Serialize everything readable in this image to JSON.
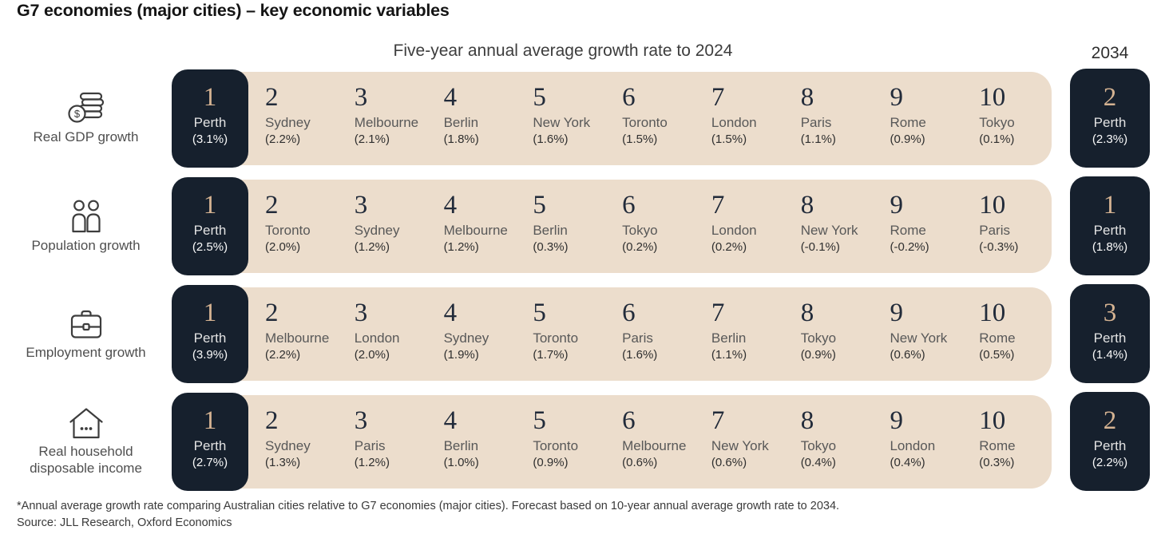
{
  "title": "G7 economies (major cities) – key economic variables",
  "header": {
    "period_label": "Five-year annual average growth rate to 2024",
    "forecast_year": "2034"
  },
  "colors": {
    "dark_navy": "#16202d",
    "beige_band": "#ecddcc",
    "rank_accent_tan": "#d5b392"
  },
  "rows": [
    {
      "label": "Real GDP growth",
      "icon": "coins-icon",
      "ranks": [
        {
          "rank": "1",
          "city": "Perth",
          "value": "(3.1%)"
        },
        {
          "rank": "2",
          "city": "Sydney",
          "value": "(2.2%)"
        },
        {
          "rank": "3",
          "city": "Melbourne",
          "value": "(2.1%)"
        },
        {
          "rank": "4",
          "city": "Berlin",
          "value": "(1.8%)"
        },
        {
          "rank": "5",
          "city": "New York",
          "value": "(1.6%)"
        },
        {
          "rank": "6",
          "city": "Toronto",
          "value": "(1.5%)"
        },
        {
          "rank": "7",
          "city": "London",
          "value": "(1.5%)"
        },
        {
          "rank": "8",
          "city": "Paris",
          "value": "(1.1%)"
        },
        {
          "rank": "9",
          "city": "Rome",
          "value": "(0.9%)"
        },
        {
          "rank": "10",
          "city": "Tokyo",
          "value": "(0.1%)"
        }
      ],
      "forecast": {
        "rank": "2",
        "city": "Perth",
        "value": "(2.3%)"
      }
    },
    {
      "label": "Population growth",
      "icon": "people-icon",
      "ranks": [
        {
          "rank": "1",
          "city": "Perth",
          "value": "(2.5%)"
        },
        {
          "rank": "2",
          "city": "Toronto",
          "value": "(2.0%)"
        },
        {
          "rank": "3",
          "city": "Sydney",
          "value": "(1.2%)"
        },
        {
          "rank": "4",
          "city": "Melbourne",
          "value": "(1.2%)"
        },
        {
          "rank": "5",
          "city": "Berlin",
          "value": "(0.3%)"
        },
        {
          "rank": "6",
          "city": "Tokyo",
          "value": "(0.2%)"
        },
        {
          "rank": "7",
          "city": "London",
          "value": "(0.2%)"
        },
        {
          "rank": "8",
          "city": "New York",
          "value": "(-0.1%)"
        },
        {
          "rank": "9",
          "city": "Rome",
          "value": "(-0.2%)"
        },
        {
          "rank": "10",
          "city": "Paris",
          "value": "(-0.3%)"
        }
      ],
      "forecast": {
        "rank": "1",
        "city": "Perth",
        "value": "(1.8%)"
      }
    },
    {
      "label": "Employment growth",
      "icon": "briefcase-icon",
      "ranks": [
        {
          "rank": "1",
          "city": "Perth",
          "value": "(3.9%)"
        },
        {
          "rank": "2",
          "city": "Melbourne",
          "value": "(2.2%)"
        },
        {
          "rank": "3",
          "city": "London",
          "value": "(2.0%)"
        },
        {
          "rank": "4",
          "city": "Sydney",
          "value": "(1.9%)"
        },
        {
          "rank": "5",
          "city": "Toronto",
          "value": "(1.7%)"
        },
        {
          "rank": "6",
          "city": "Paris",
          "value": "(1.6%)"
        },
        {
          "rank": "7",
          "city": "Berlin",
          "value": "(1.1%)"
        },
        {
          "rank": "8",
          "city": "Tokyo",
          "value": "(0.9%)"
        },
        {
          "rank": "9",
          "city": "New York",
          "value": "(0.6%)"
        },
        {
          "rank": "10",
          "city": "Rome",
          "value": "(0.5%)"
        }
      ],
      "forecast": {
        "rank": "3",
        "city": "Perth",
        "value": "(1.4%)"
      }
    },
    {
      "label": "Real household disposable income",
      "icon": "house-icon",
      "ranks": [
        {
          "rank": "1",
          "city": "Perth",
          "value": "(2.7%)"
        },
        {
          "rank": "2",
          "city": "Sydney",
          "value": "(1.3%)"
        },
        {
          "rank": "3",
          "city": "Paris",
          "value": "(1.2%)"
        },
        {
          "rank": "4",
          "city": "Berlin",
          "value": "(1.0%)"
        },
        {
          "rank": "5",
          "city": "Toronto",
          "value": "(0.9%)"
        },
        {
          "rank": "6",
          "city": "Melbourne",
          "value": "(0.6%)"
        },
        {
          "rank": "7",
          "city": "New York",
          "value": "(0.6%)"
        },
        {
          "rank": "8",
          "city": "Tokyo",
          "value": "(0.4%)"
        },
        {
          "rank": "9",
          "city": "London",
          "value": "(0.4%)"
        },
        {
          "rank": "10",
          "city": "Rome",
          "value": "(0.3%)"
        }
      ],
      "forecast": {
        "rank": "2",
        "city": "Perth",
        "value": "(2.2%)"
      }
    }
  ],
  "footnote": "*Annual average growth rate comparing Australian cities relative to G7 economies (major cities). Forecast based on 10-year annual average growth rate to 2034.",
  "source": "Source: JLL Research, Oxford Economics",
  "chart_data": {
    "type": "table",
    "title": "G7 economies (major cities) – key economic variables",
    "subtitle": "Five-year annual average growth rate to 2024",
    "forecast_column_label": "2034",
    "metrics": [
      {
        "name": "Real GDP growth",
        "rankings_2024": [
          {
            "rank": 1,
            "city": "Perth",
            "pct": 3.1
          },
          {
            "rank": 2,
            "city": "Sydney",
            "pct": 2.2
          },
          {
            "rank": 3,
            "city": "Melbourne",
            "pct": 2.1
          },
          {
            "rank": 4,
            "city": "Berlin",
            "pct": 1.8
          },
          {
            "rank": 5,
            "city": "New York",
            "pct": 1.6
          },
          {
            "rank": 6,
            "city": "Toronto",
            "pct": 1.5
          },
          {
            "rank": 7,
            "city": "London",
            "pct": 1.5
          },
          {
            "rank": 8,
            "city": "Paris",
            "pct": 1.1
          },
          {
            "rank": 9,
            "city": "Rome",
            "pct": 0.9
          },
          {
            "rank": 10,
            "city": "Tokyo",
            "pct": 0.1
          }
        ],
        "forecast_2034": {
          "rank": 2,
          "city": "Perth",
          "pct": 2.3
        }
      },
      {
        "name": "Population growth",
        "rankings_2024": [
          {
            "rank": 1,
            "city": "Perth",
            "pct": 2.5
          },
          {
            "rank": 2,
            "city": "Toronto",
            "pct": 2.0
          },
          {
            "rank": 3,
            "city": "Sydney",
            "pct": 1.2
          },
          {
            "rank": 4,
            "city": "Melbourne",
            "pct": 1.2
          },
          {
            "rank": 5,
            "city": "Berlin",
            "pct": 0.3
          },
          {
            "rank": 6,
            "city": "Tokyo",
            "pct": 0.2
          },
          {
            "rank": 7,
            "city": "London",
            "pct": 0.2
          },
          {
            "rank": 8,
            "city": "New York",
            "pct": -0.1
          },
          {
            "rank": 9,
            "city": "Rome",
            "pct": -0.2
          },
          {
            "rank": 10,
            "city": "Paris",
            "pct": -0.3
          }
        ],
        "forecast_2034": {
          "rank": 1,
          "city": "Perth",
          "pct": 1.8
        }
      },
      {
        "name": "Employment growth",
        "rankings_2024": [
          {
            "rank": 1,
            "city": "Perth",
            "pct": 3.9
          },
          {
            "rank": 2,
            "city": "Melbourne",
            "pct": 2.2
          },
          {
            "rank": 3,
            "city": "London",
            "pct": 2.0
          },
          {
            "rank": 4,
            "city": "Sydney",
            "pct": 1.9
          },
          {
            "rank": 5,
            "city": "Toronto",
            "pct": 1.7
          },
          {
            "rank": 6,
            "city": "Paris",
            "pct": 1.6
          },
          {
            "rank": 7,
            "city": "Berlin",
            "pct": 1.1
          },
          {
            "rank": 8,
            "city": "Tokyo",
            "pct": 0.9
          },
          {
            "rank": 9,
            "city": "New York",
            "pct": 0.6
          },
          {
            "rank": 10,
            "city": "Rome",
            "pct": 0.5
          }
        ],
        "forecast_2034": {
          "rank": 3,
          "city": "Perth",
          "pct": 1.4
        }
      },
      {
        "name": "Real household disposable income",
        "rankings_2024": [
          {
            "rank": 1,
            "city": "Perth",
            "pct": 2.7
          },
          {
            "rank": 2,
            "city": "Sydney",
            "pct": 1.3
          },
          {
            "rank": 3,
            "city": "Paris",
            "pct": 1.2
          },
          {
            "rank": 4,
            "city": "Berlin",
            "pct": 1.0
          },
          {
            "rank": 5,
            "city": "Toronto",
            "pct": 0.9
          },
          {
            "rank": 6,
            "city": "Melbourne",
            "pct": 0.6
          },
          {
            "rank": 7,
            "city": "New York",
            "pct": 0.6
          },
          {
            "rank": 8,
            "city": "Tokyo",
            "pct": 0.4
          },
          {
            "rank": 9,
            "city": "London",
            "pct": 0.4
          },
          {
            "rank": 10,
            "city": "Rome",
            "pct": 0.3
          }
        ],
        "forecast_2034": {
          "rank": 2,
          "city": "Perth",
          "pct": 2.2
        }
      }
    ]
  }
}
